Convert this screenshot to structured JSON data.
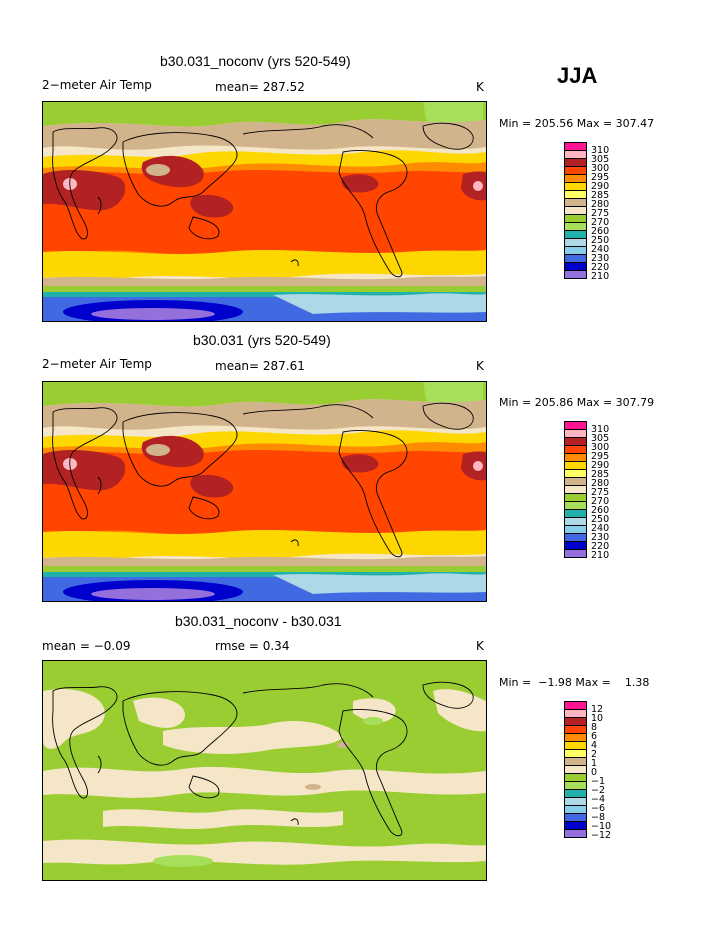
{
  "season": "JJA",
  "panels": [
    {
      "title": "b30.031_noconv (yrs 520-549)",
      "variable": "2−meter Air Temp",
      "stat_text": "mean=  287.52",
      "units": "K",
      "min_max": "Min = 205.56 Max = 307.47",
      "kind": "abs"
    },
    {
      "title": "b30.031 (yrs 520-549)",
      "variable": "2−meter Air Temp",
      "stat_text": "mean=  287.61",
      "units": "K",
      "min_max": "Min = 205.86 Max = 307.79",
      "kind": "abs"
    },
    {
      "title": "b30.031_noconv - b30.031",
      "variable": "mean =   −0.09",
      "stat_text": "rmse =     0.34",
      "units": "K",
      "min_max": "Min =  −1.98 Max =    1.38",
      "kind": "diff"
    }
  ],
  "legend_abs": {
    "colors": [
      "#ff1493",
      "#ffb6c1",
      "#b22222",
      "#ff4500",
      "#ff8c00",
      "#ffd700",
      "#ffff66",
      "#d2b48c",
      "#f5e6c8",
      "#9acd32",
      "#a6e05a",
      "#20b2aa",
      "#add8e6",
      "#87ceeb",
      "#4169e1",
      "#0000cd",
      "#9370db"
    ],
    "labels": [
      "310",
      "305",
      "300",
      "295",
      "290",
      "285",
      "280",
      "275",
      "270",
      "260",
      "250",
      "240",
      "230",
      "220",
      "210"
    ]
  },
  "legend_diff": {
    "colors": [
      "#ff1493",
      "#ffb6c1",
      "#b22222",
      "#ff4500",
      "#ff8c00",
      "#ffd700",
      "#ffff66",
      "#d2b48c",
      "#f5e6c8",
      "#9acd32",
      "#a6e05a",
      "#20b2aa",
      "#add8e6",
      "#87ceeb",
      "#4169e1",
      "#0000cd",
      "#9370db"
    ],
    "labels": [
      "12",
      "10",
      "8",
      "6",
      "4",
      "2",
      "1",
      "0",
      "−1",
      "−2",
      "−4",
      "−6",
      "−8",
      "−10",
      "−12"
    ]
  }
}
